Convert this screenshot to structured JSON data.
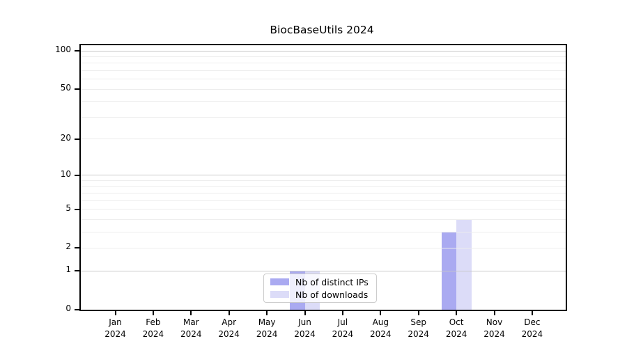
{
  "chart_data": {
    "type": "bar",
    "title": "BiocBaseUtils 2024",
    "categories": [
      "Jan",
      "Feb",
      "Mar",
      "Apr",
      "May",
      "Jun",
      "Jul",
      "Aug",
      "Sep",
      "Oct",
      "Nov",
      "Dec"
    ],
    "category_year": "2024",
    "series": [
      {
        "name": "Nb of distinct IPs",
        "color": "#aaaaf1",
        "values": [
          0,
          0,
          0,
          0,
          0,
          1,
          0,
          0,
          0,
          3,
          0,
          0
        ]
      },
      {
        "name": "Nb of downloads",
        "color": "#dcdcf8",
        "values": [
          0,
          0,
          0,
          0,
          0,
          1,
          0,
          0,
          0,
          4,
          0,
          0
        ]
      }
    ],
    "yscale": "log1p",
    "ylim": [
      0,
      110
    ],
    "yticks": [
      0,
      1,
      2,
      5,
      10,
      20,
      50,
      100
    ],
    "major_gridlines": [
      1,
      10,
      100
    ],
    "minor_gridlines": [
      2,
      3,
      4,
      5,
      6,
      7,
      8,
      9,
      20,
      30,
      40,
      50,
      60,
      70,
      80,
      90
    ],
    "grid": true,
    "legend_position": "lower-center-inside",
    "colors": {
      "major_grid": "#c8c8c8",
      "minor_grid": "#ededed",
      "axis": "#000000",
      "text": "#000000",
      "background": "#ffffff"
    }
  }
}
